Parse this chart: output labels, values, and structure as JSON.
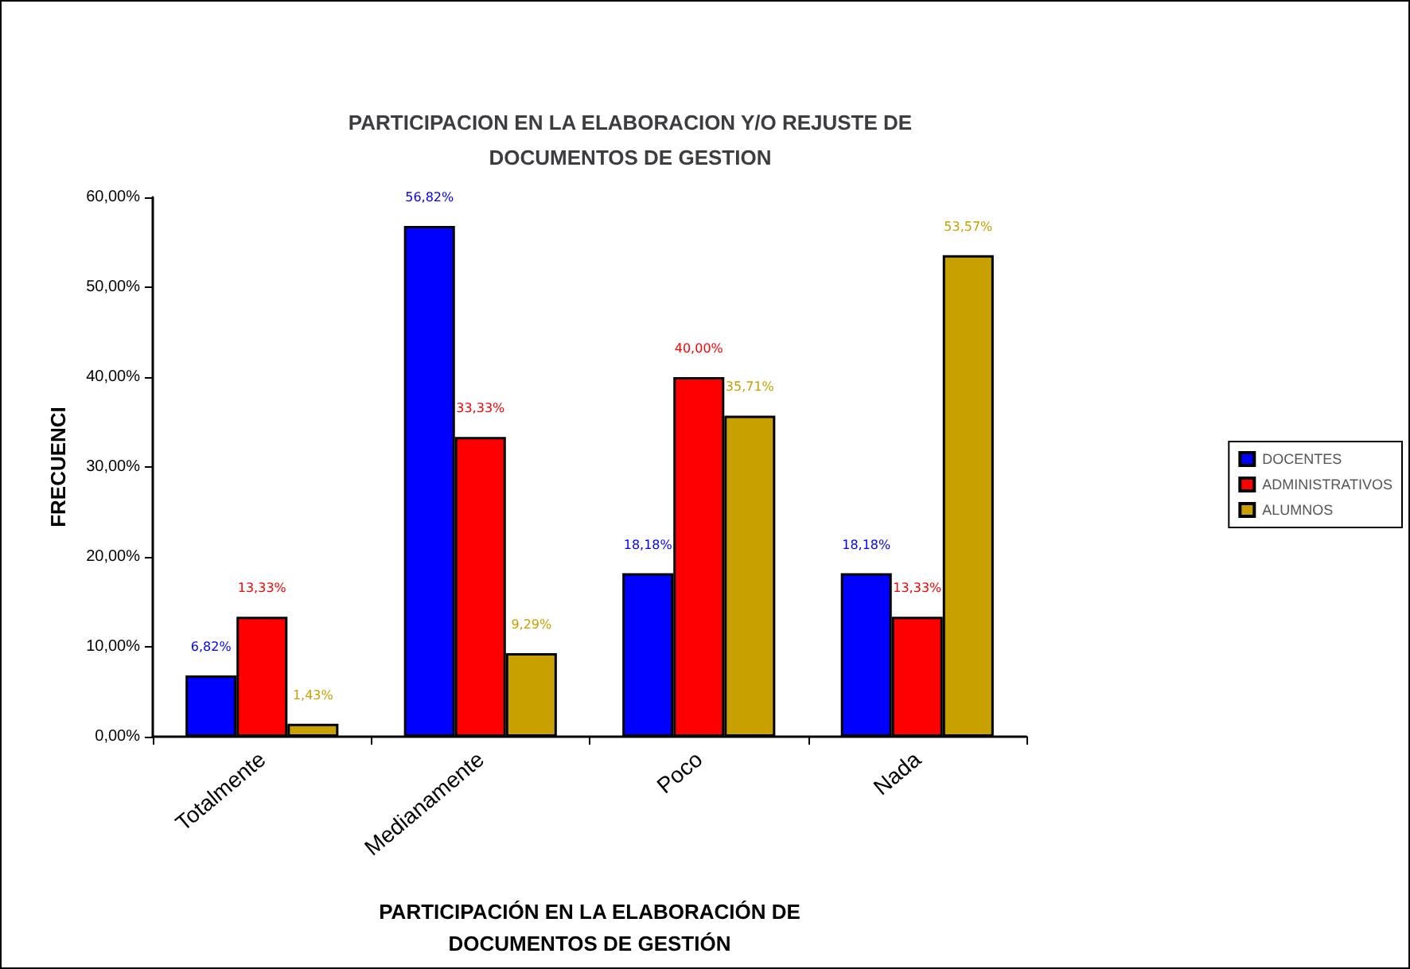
{
  "chart_data": {
    "type": "bar",
    "title": "PARTICIPACION EN LA ELABORACION Y/O REJUSTE DE\nDOCUMENTOS DE GESTION",
    "xlabel": "PARTICIPACIÓN EN LA ELABORACIÓN DE\nDOCUMENTOS DE GESTIÓN",
    "ylabel": "FRECUENCI",
    "categories": [
      "Totalmente",
      "Medianamente",
      "Poco",
      "Nada"
    ],
    "series": [
      {
        "name": "DOCENTES",
        "color": "#0000ff",
        "values": [
          6.82,
          56.82,
          18.18,
          18.18
        ],
        "value_labels": [
          "6,82%",
          "56,82%",
          "18,18%",
          "18,18%"
        ]
      },
      {
        "name": "ADMINISTRATIVOS",
        "color": "#ff0000",
        "values": [
          13.33,
          33.33,
          40.0,
          13.33
        ],
        "value_labels": [
          "13,33%",
          "33,33%",
          "40,00%",
          "13,33%"
        ]
      },
      {
        "name": "ALUMNOS",
        "color": "#c8a000",
        "values": [
          1.43,
          9.29,
          35.71,
          53.57
        ],
        "value_labels": [
          "1,43%",
          "9,29%",
          "35,71%",
          "53,57%"
        ]
      }
    ],
    "ylim": [
      0,
      60
    ],
    "yticks": [
      {
        "value": 0,
        "label": "0,00%"
      },
      {
        "value": 10,
        "label": "10,00%"
      },
      {
        "value": 20,
        "label": "20,00%"
      },
      {
        "value": 30,
        "label": "30,00%"
      },
      {
        "value": 40,
        "label": "40,00%"
      },
      {
        "value": 50,
        "label": "50,00%"
      },
      {
        "value": 60,
        "label": "60,00%"
      }
    ],
    "grid": false,
    "legend": "right"
  }
}
